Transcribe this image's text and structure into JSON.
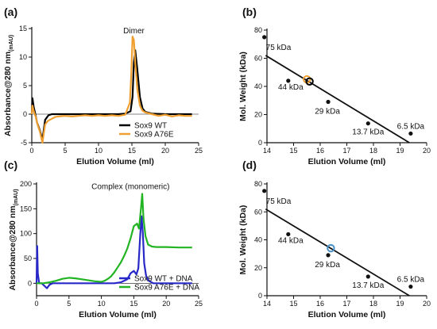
{
  "chart_data": [
    {
      "id": "a",
      "panel_label": "(a)",
      "type": "line",
      "xlabel": "Elution Volume (ml)",
      "ylabel": "Absorbance@280 nm",
      "ylabel_sub": "(mAU)",
      "xlim": [
        0,
        25
      ],
      "ylim": [
        -5,
        15
      ],
      "xticks": [
        0,
        5,
        10,
        15,
        20,
        25
      ],
      "yticks": [
        -5,
        0,
        5,
        10,
        15
      ],
      "annotation": {
        "text": "Dimer",
        "x": 15.3,
        "y": 14.2
      },
      "legend_position": "bottom-right",
      "series": [
        {
          "name": "Sox9 WT",
          "color": "#000000",
          "x": [
            0,
            0.1,
            0.3,
            0.5,
            0.8,
            1.2,
            1.6,
            2.0,
            2.5,
            3,
            4,
            6,
            8,
            10,
            12,
            13,
            14,
            14.8,
            15.1,
            15.3,
            15.5,
            15.8,
            16.2,
            16.6,
            17,
            18,
            20,
            24
          ],
          "y": [
            0,
            2.8,
            1.2,
            0.2,
            -1.5,
            -2.8,
            -4.5,
            -1.0,
            -0.2,
            0,
            0,
            0,
            0,
            0,
            0,
            0,
            0.1,
            0.5,
            3,
            9,
            11.2,
            8,
            3,
            1,
            0.4,
            0.1,
            0,
            0
          ]
        },
        {
          "name": "Sox9 A76E",
          "color": "#f0a030",
          "x": [
            0,
            0.1,
            0.3,
            0.6,
            0.9,
            1.2,
            1.6,
            2.0,
            2.4,
            3,
            3.5,
            4,
            5,
            6,
            7,
            8,
            9,
            10,
            11,
            12,
            13,
            14,
            14.7,
            14.9,
            15.1,
            15.3,
            15.5,
            15.8,
            16.2,
            16.6,
            17,
            18,
            19,
            20,
            21,
            22,
            23,
            24
          ],
          "y": [
            0,
            1.5,
            0.5,
            -0.5,
            -2.0,
            -3.0,
            -5.0,
            -1.8,
            -1.2,
            -0.8,
            -0.5,
            -0.4,
            -0.3,
            -0.4,
            -0.3,
            -0.2,
            -0.3,
            -0.2,
            -0.3,
            -0.2,
            -0.3,
            -0.1,
            2,
            7,
            13.6,
            13.0,
            9,
            4.5,
            1.5,
            0.6,
            0.3,
            0,
            -0.3,
            -0.1,
            -0.4,
            -0.2,
            -0.3,
            -0.3
          ]
        }
      ]
    },
    {
      "id": "b",
      "panel_label": "(b)",
      "type": "scatter",
      "xlabel": "Elution Volume (ml)",
      "ylabel": "Mol. Weight (kDa)",
      "xlim": [
        14,
        20
      ],
      "ylim": [
        0,
        80
      ],
      "xticks": [
        14,
        15,
        16,
        17,
        18,
        19,
        20
      ],
      "yticks": [
        0,
        20,
        40,
        60,
        80
      ],
      "points": [
        {
          "x": 13.9,
          "y": 75,
          "label": "75 kDa"
        },
        {
          "x": 14.8,
          "y": 44,
          "label": "44 kDa"
        },
        {
          "x": 16.3,
          "y": 29,
          "label": "29 kDa"
        },
        {
          "x": 17.8,
          "y": 13.7,
          "label": "13.7 kDa"
        },
        {
          "x": 19.4,
          "y": 6.5,
          "label": "6.5 kDa"
        }
      ],
      "fit_line": {
        "x": [
          13.95,
          19.35
        ],
        "y": [
          62,
          0
        ]
      },
      "highlight": [
        {
          "x": 15.5,
          "y": 45,
          "color": "#f0a030"
        },
        {
          "x": 15.6,
          "y": 43.5,
          "color": "#000000"
        }
      ]
    },
    {
      "id": "c",
      "panel_label": "(c)",
      "type": "line",
      "xlabel": "Elution Volume (ml)",
      "ylabel": "Absorbance@280 nm",
      "ylabel_sub": "(mAU)",
      "xlim": [
        0,
        25
      ],
      "ylim": [
        -25,
        200
      ],
      "xticks": [
        0,
        5,
        10,
        15,
        20,
        25
      ],
      "yticks": [
        0,
        50,
        100,
        150,
        200
      ],
      "annotation": {
        "text": "Complex (monomeric)",
        "x": 14.5,
        "y": 190
      },
      "legend_position": "bottom-right",
      "series": [
        {
          "name": "Sox9 WT + DNA",
          "color": "#2828c8",
          "x": [
            0,
            0.1,
            0.2,
            0.4,
            0.8,
            1.2,
            1.6,
            2.0,
            2.5,
            3,
            4,
            6,
            8,
            10,
            11,
            12,
            13,
            14,
            14.5,
            15,
            15.4,
            15.7,
            16.0,
            16.2,
            16.4,
            16.6,
            16.9,
            17.3,
            18,
            20,
            24
          ],
          "y": [
            0,
            75,
            20,
            0,
            0,
            -5,
            -10,
            -3,
            0,
            0,
            0,
            0,
            0,
            0,
            0,
            0,
            2,
            8,
            20,
            25,
            18,
            30,
            100,
            135,
            100,
            40,
            15,
            5,
            0,
            0,
            0
          ]
        },
        {
          "name": "Sox9 A76E + DNA",
          "color": "#22b422",
          "x": [
            0,
            0.1,
            0.5,
            1,
            2,
            3,
            4,
            5,
            6,
            7,
            8,
            9,
            10,
            10.5,
            11,
            11.5,
            12,
            12.5,
            13,
            13.5,
            14,
            14.5,
            15,
            15.5,
            15.8,
            16.1,
            16.3,
            16.5,
            16.8,
            17.2,
            17.8,
            18.5,
            20,
            22,
            24
          ],
          "y": [
            0,
            0,
            0,
            0,
            2,
            5,
            9,
            11,
            10,
            8,
            6,
            4,
            3,
            5,
            9,
            14,
            22,
            32,
            42,
            55,
            70,
            90,
            115,
            120,
            110,
            150,
            180,
            130,
            95,
            78,
            74,
            73,
            73,
            72,
            72
          ]
        }
      ]
    },
    {
      "id": "d",
      "panel_label": "(d)",
      "type": "scatter",
      "xlabel": "Elution Volume (ml)",
      "ylabel": "Mol. Weight (kDa)",
      "xlim": [
        14,
        20
      ],
      "ylim": [
        0,
        80
      ],
      "xticks": [
        14,
        15,
        16,
        17,
        18,
        19,
        20
      ],
      "yticks": [
        0,
        20,
        40,
        60,
        80
      ],
      "points": [
        {
          "x": 13.9,
          "y": 75,
          "label": "75 kDa"
        },
        {
          "x": 14.8,
          "y": 44,
          "label": "44 kDa"
        },
        {
          "x": 16.3,
          "y": 29,
          "label": "29 kDa"
        },
        {
          "x": 17.8,
          "y": 13.7,
          "label": "13.7 kDa"
        },
        {
          "x": 19.4,
          "y": 6.5,
          "label": "6.5 kDa"
        }
      ],
      "fit_line": {
        "x": [
          13.95,
          19.35
        ],
        "y": [
          62,
          0
        ]
      },
      "highlight": [
        {
          "x": 16.4,
          "y": 34,
          "color": "#4a90c8"
        }
      ]
    }
  ]
}
